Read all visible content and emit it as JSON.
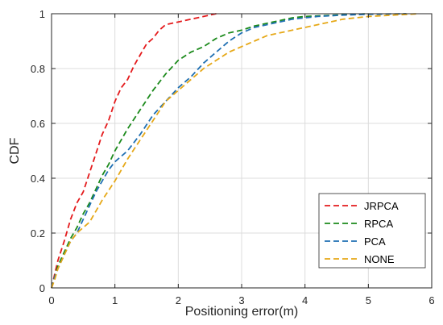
{
  "chart_data": {
    "type": "line",
    "title": "",
    "xlabel": "Positioning error(m)",
    "ylabel": "CDF",
    "xlim": [
      0,
      6
    ],
    "ylim": [
      0,
      1
    ],
    "xticks": [
      "0",
      "1",
      "2",
      "3",
      "4",
      "5",
      "6"
    ],
    "yticks": [
      "0",
      "0.2",
      "0.4",
      "0.6",
      "0.8",
      "1"
    ],
    "grid": true,
    "legend_position": "bottom-right",
    "series": [
      {
        "name": "JRPCA",
        "color": "#e41a1c",
        "style": "dashed",
        "points": [
          [
            0,
            0
          ],
          [
            0.05,
            0.05
          ],
          [
            0.1,
            0.1
          ],
          [
            0.2,
            0.17
          ],
          [
            0.3,
            0.25
          ],
          [
            0.4,
            0.31
          ],
          [
            0.5,
            0.35
          ],
          [
            0.6,
            0.42
          ],
          [
            0.7,
            0.49
          ],
          [
            0.8,
            0.56
          ],
          [
            0.9,
            0.61
          ],
          [
            1.0,
            0.68
          ],
          [
            1.1,
            0.73
          ],
          [
            1.2,
            0.76
          ],
          [
            1.3,
            0.81
          ],
          [
            1.4,
            0.85
          ],
          [
            1.5,
            0.89
          ],
          [
            1.6,
            0.91
          ],
          [
            1.7,
            0.94
          ],
          [
            1.8,
            0.96
          ],
          [
            1.9,
            0.965
          ],
          [
            2.0,
            0.97
          ],
          [
            2.2,
            0.98
          ],
          [
            2.4,
            0.99
          ],
          [
            2.6,
            1.0
          ]
        ]
      },
      {
        "name": "RPCA",
        "color": "#1b8a1b",
        "style": "dashed",
        "points": [
          [
            0,
            0
          ],
          [
            0.05,
            0.04
          ],
          [
            0.1,
            0.08
          ],
          [
            0.2,
            0.13
          ],
          [
            0.3,
            0.18
          ],
          [
            0.4,
            0.22
          ],
          [
            0.5,
            0.27
          ],
          [
            0.6,
            0.31
          ],
          [
            0.7,
            0.36
          ],
          [
            0.8,
            0.41
          ],
          [
            0.9,
            0.45
          ],
          [
            1.0,
            0.5
          ],
          [
            1.2,
            0.58
          ],
          [
            1.4,
            0.65
          ],
          [
            1.6,
            0.72
          ],
          [
            1.8,
            0.78
          ],
          [
            2.0,
            0.83
          ],
          [
            2.2,
            0.86
          ],
          [
            2.4,
            0.88
          ],
          [
            2.6,
            0.91
          ],
          [
            2.8,
            0.93
          ],
          [
            3.0,
            0.94
          ],
          [
            3.2,
            0.955
          ],
          [
            3.4,
            0.965
          ],
          [
            3.6,
            0.975
          ],
          [
            3.8,
            0.985
          ],
          [
            4.0,
            0.99
          ],
          [
            4.5,
            0.995
          ],
          [
            5.0,
            1.0
          ]
        ]
      },
      {
        "name": "PCA",
        "color": "#1f6fb2",
        "style": "dashed",
        "points": [
          [
            0,
            0
          ],
          [
            0.05,
            0.04
          ],
          [
            0.1,
            0.07
          ],
          [
            0.2,
            0.12
          ],
          [
            0.3,
            0.17
          ],
          [
            0.4,
            0.2
          ],
          [
            0.5,
            0.25
          ],
          [
            0.6,
            0.3
          ],
          [
            0.7,
            0.35
          ],
          [
            0.8,
            0.39
          ],
          [
            0.9,
            0.43
          ],
          [
            1.0,
            0.46
          ],
          [
            1.2,
            0.5
          ],
          [
            1.4,
            0.56
          ],
          [
            1.6,
            0.63
          ],
          [
            1.8,
            0.68
          ],
          [
            2.0,
            0.73
          ],
          [
            2.2,
            0.77
          ],
          [
            2.4,
            0.82
          ],
          [
            2.6,
            0.86
          ],
          [
            2.8,
            0.9
          ],
          [
            3.0,
            0.93
          ],
          [
            3.2,
            0.95
          ],
          [
            3.4,
            0.96
          ],
          [
            3.6,
            0.97
          ],
          [
            3.8,
            0.98
          ],
          [
            4.0,
            0.985
          ],
          [
            4.2,
            0.99
          ],
          [
            4.6,
            0.995
          ],
          [
            5.0,
            0.998
          ],
          [
            5.6,
            1.0
          ]
        ]
      },
      {
        "name": "NONE",
        "color": "#e6a817",
        "style": "dashed",
        "points": [
          [
            0,
            0
          ],
          [
            0.05,
            0.03
          ],
          [
            0.1,
            0.07
          ],
          [
            0.2,
            0.12
          ],
          [
            0.3,
            0.17
          ],
          [
            0.4,
            0.2
          ],
          [
            0.5,
            0.22
          ],
          [
            0.6,
            0.24
          ],
          [
            0.7,
            0.28
          ],
          [
            0.8,
            0.32
          ],
          [
            1.0,
            0.39
          ],
          [
            1.2,
            0.47
          ],
          [
            1.4,
            0.54
          ],
          [
            1.6,
            0.61
          ],
          [
            1.8,
            0.68
          ],
          [
            2.0,
            0.72
          ],
          [
            2.2,
            0.76
          ],
          [
            2.4,
            0.8
          ],
          [
            2.6,
            0.83
          ],
          [
            2.8,
            0.86
          ],
          [
            3.0,
            0.88
          ],
          [
            3.2,
            0.9
          ],
          [
            3.4,
            0.92
          ],
          [
            3.6,
            0.93
          ],
          [
            3.8,
            0.94
          ],
          [
            4.0,
            0.95
          ],
          [
            4.2,
            0.96
          ],
          [
            4.4,
            0.97
          ],
          [
            4.6,
            0.98
          ],
          [
            4.8,
            0.985
          ],
          [
            5.0,
            0.99
          ],
          [
            5.4,
            0.995
          ],
          [
            5.8,
            1.0
          ]
        ]
      }
    ]
  }
}
